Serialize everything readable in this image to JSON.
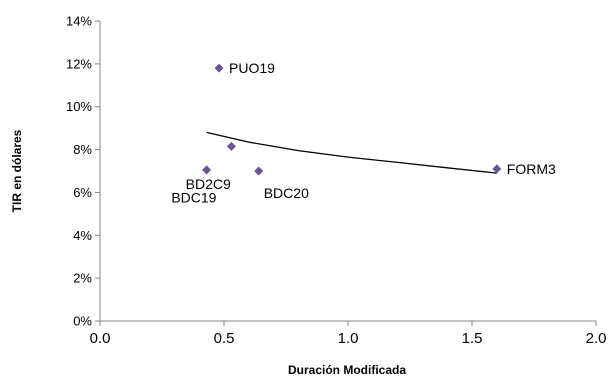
{
  "chart_data": {
    "type": "scatter",
    "title": "",
    "xlabel": "Duración Modificada",
    "ylabel": "TIR en dólares",
    "xlim": [
      0,
      2
    ],
    "ylim": [
      0,
      14
    ],
    "x_ticks": [
      "0.0",
      "0.5",
      "1.0",
      "1.5",
      "2.0"
    ],
    "y_ticks": [
      "0%",
      "2%",
      "4%",
      "6%",
      "8%",
      "10%",
      "12%",
      "14%"
    ],
    "grid": false,
    "legend": "none",
    "marker_color": "#6A5495",
    "trendline_color": "#000000",
    "series": [
      {
        "points": [
          {
            "x": 0.48,
            "y": 11.8,
            "label": "PUO19",
            "anchor": "right"
          },
          {
            "x": 0.53,
            "y": 8.15,
            "label": "",
            "anchor": "none"
          },
          {
            "x": 0.43,
            "y": 7.05,
            "label": "BD2C9",
            "anchor": "below"
          },
          {
            "x": 0.64,
            "y": 7.0,
            "label": "BDC20",
            "anchor": "below-right"
          },
          {
            "x": 1.6,
            "y": 7.1,
            "label": "FORM3",
            "anchor": "right"
          }
        ]
      }
    ],
    "annotations": [
      {
        "text": "BDC19",
        "x": 0.34,
        "y": 5.8
      }
    ],
    "trendline": {
      "type": "power",
      "x_range": [
        0.43,
        1.6
      ],
      "points": [
        [
          0.43,
          8.8
        ],
        [
          0.6,
          8.35
        ],
        [
          0.8,
          7.95
        ],
        [
          1.0,
          7.65
        ],
        [
          1.2,
          7.4
        ],
        [
          1.4,
          7.15
        ],
        [
          1.6,
          6.9
        ]
      ]
    }
  }
}
